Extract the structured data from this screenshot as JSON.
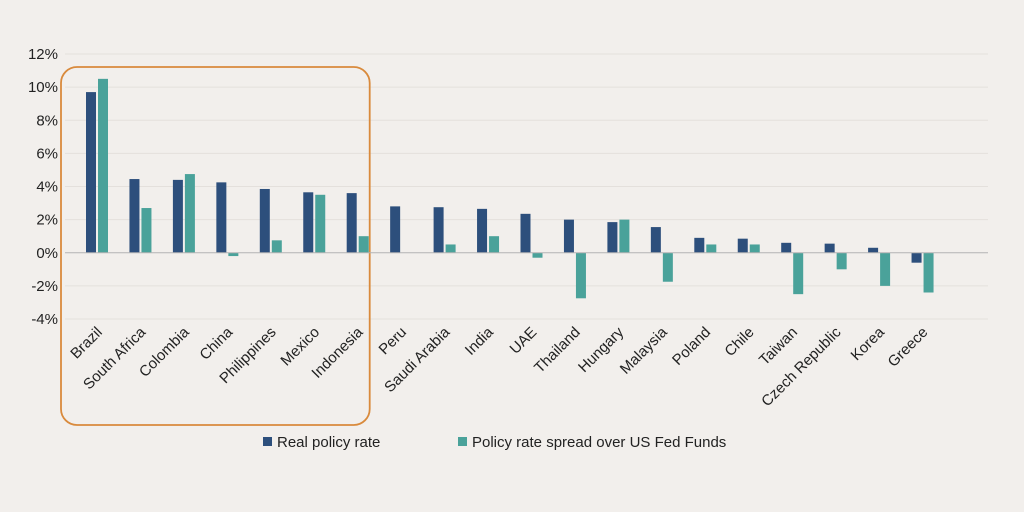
{
  "chart_data": {
    "type": "bar",
    "categories": [
      "Brazil",
      "South Africa",
      "Colombia",
      "China",
      "Philippines",
      "Mexico",
      "Indonesia",
      "Peru",
      "Saudi Arabia",
      "India",
      "UAE",
      "Thailand",
      "Hungary",
      "Malaysia",
      "Poland",
      "Chile",
      "Taiwan",
      "Czech Republic",
      "Korea",
      "Greece"
    ],
    "series": [
      {
        "name": "Real policy rate",
        "color": "#2d4f7c",
        "values": [
          9.7,
          4.45,
          4.4,
          4.25,
          3.85,
          3.65,
          3.6,
          2.8,
          2.75,
          2.65,
          2.35,
          2.0,
          1.85,
          1.55,
          0.9,
          0.85,
          0.6,
          0.55,
          0.3,
          -0.6
        ]
      },
      {
        "name": "Policy rate spread over US Fed Funds",
        "color": "#4aa29a",
        "values": [
          10.5,
          2.7,
          4.75,
          -0.2,
          0.75,
          3.5,
          1.0,
          0.0,
          0.5,
          1.0,
          -0.3,
          -2.75,
          2.0,
          -1.75,
          0.5,
          0.5,
          -2.5,
          -1.0,
          -2.0,
          -2.4
        ]
      }
    ],
    "yticks": [
      "12%",
      "10%",
      "8%",
      "6%",
      "4%",
      "2%",
      "0%",
      "-2%",
      "-4%"
    ],
    "ylim": [
      -4,
      12
    ],
    "grid": true,
    "legend_position": "bottom-center",
    "highlight": {
      "categories": [
        "Brazil",
        "South Africa",
        "Colombia",
        "China",
        "Philippines",
        "Mexico",
        "Indonesia"
      ],
      "color": "#d98a3c"
    }
  }
}
